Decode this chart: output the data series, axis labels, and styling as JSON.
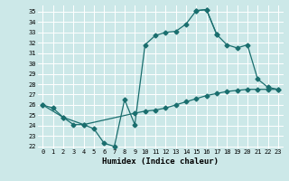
{
  "xlabel": "Humidex (Indice chaleur)",
  "background_color": "#cce8e8",
  "grid_color": "#ffffff",
  "line_color": "#1a6e6e",
  "xlim": [
    -0.5,
    23.5
  ],
  "ylim": [
    21.8,
    35.6
  ],
  "xticks": [
    0,
    1,
    2,
    3,
    4,
    5,
    6,
    7,
    8,
    9,
    10,
    11,
    12,
    13,
    14,
    15,
    16,
    17,
    18,
    19,
    20,
    21,
    22,
    23
  ],
  "yticks": [
    22,
    23,
    24,
    25,
    26,
    27,
    28,
    29,
    30,
    31,
    32,
    33,
    34,
    35
  ],
  "series1_x": [
    0,
    1,
    2,
    3,
    4,
    5,
    6,
    7,
    8,
    9,
    10,
    11,
    12,
    13,
    14,
    15,
    16,
    17
  ],
  "series1_y": [
    26.0,
    25.7,
    24.8,
    24.1,
    24.1,
    23.7,
    22.3,
    22.0,
    26.5,
    24.1,
    31.8,
    32.7,
    33.0,
    33.1,
    33.8,
    35.1,
    35.2,
    32.8
  ],
  "series2_x": [
    0,
    2,
    4,
    9,
    10,
    11,
    12,
    13,
    14,
    15,
    16,
    17,
    18,
    19,
    20,
    21,
    22,
    23
  ],
  "series2_y": [
    26.0,
    24.8,
    24.1,
    25.2,
    25.4,
    25.5,
    25.7,
    26.0,
    26.3,
    26.6,
    26.9,
    27.1,
    27.3,
    27.4,
    27.5,
    27.5,
    27.5,
    27.5
  ],
  "series3_x": [
    15,
    16,
    17,
    18,
    19,
    20,
    21,
    22,
    23
  ],
  "series3_y": [
    35.1,
    35.2,
    32.8,
    31.8,
    31.5,
    31.8,
    28.5,
    27.7,
    27.5
  ]
}
